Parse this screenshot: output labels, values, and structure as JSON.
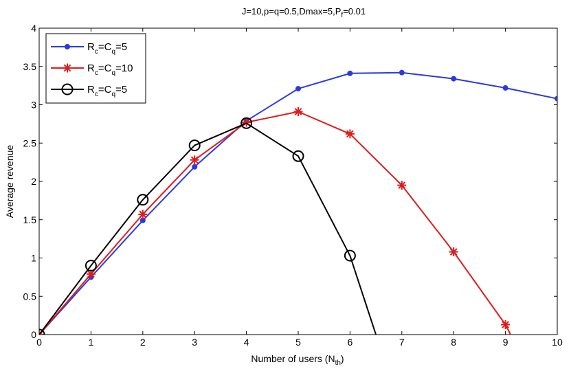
{
  "chart_data": {
    "type": "line",
    "title": {
      "base": "J=10,p=q=0.5,Dmax=5,P",
      "sub": "f",
      "tail": "=0.01"
    },
    "xlabel": {
      "base": "Number of users (N",
      "sub": "th",
      "tail": ")"
    },
    "ylabel": "Average revenue",
    "xlim": [
      0,
      10
    ],
    "ylim": [
      0,
      4
    ],
    "xticks": [
      "0",
      "1",
      "2",
      "3",
      "4",
      "5",
      "6",
      "7",
      "8",
      "9",
      "10"
    ],
    "yticks": [
      "0",
      "0.5",
      "1",
      "1.5",
      "2",
      "2.5",
      "3",
      "3.5",
      "4"
    ],
    "grid": false,
    "legend_position": "top-left",
    "series": [
      {
        "legend": {
          "a": "R",
          "a_sub": "c",
          "b": "=C",
          "b_sub": "q",
          "c": "=5"
        },
        "color": "#2b3ae0",
        "marker": "dot",
        "x": [
          0,
          1,
          2,
          3,
          4,
          5,
          6,
          7,
          8,
          9,
          10
        ],
        "y": [
          0,
          0.75,
          1.49,
          2.19,
          2.79,
          3.21,
          3.41,
          3.42,
          3.34,
          3.22,
          3.08
        ]
      },
      {
        "legend": {
          "a": "R",
          "a_sub": "c",
          "b": "=C",
          "b_sub": "q",
          "c": "=10"
        },
        "color": "#e01b1b",
        "marker": "star",
        "x": [
          0,
          1,
          2,
          3,
          4,
          5,
          6,
          7,
          8,
          9,
          9.1
        ],
        "y": [
          0,
          0.79,
          1.57,
          2.28,
          2.77,
          2.91,
          2.62,
          1.95,
          1.08,
          0.13,
          0
        ],
        "marker_count": 10
      },
      {
        "legend": {
          "a": "R",
          "a_sub": "c",
          "b": "=C",
          "b_sub": "q",
          "c": "=5"
        },
        "color": "#000000",
        "marker": "circle",
        "x": [
          0,
          1,
          2,
          3,
          4,
          5,
          6,
          6.5
        ],
        "y": [
          0,
          0.9,
          1.76,
          2.47,
          2.76,
          2.33,
          1.03,
          0
        ],
        "marker_count": 7
      }
    ]
  }
}
